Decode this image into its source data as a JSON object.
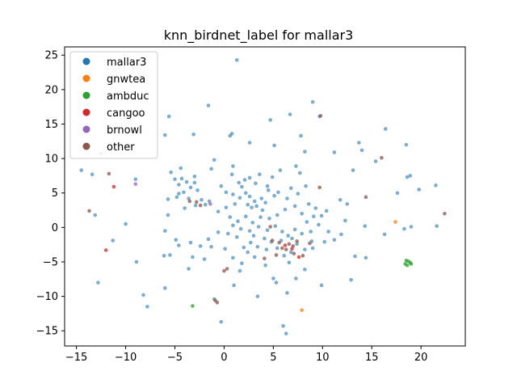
{
  "chart_data": {
    "type": "scatter",
    "title": "knn_birdnet_label for mallar3",
    "xlabel": "",
    "ylabel": "",
    "xlim": [
      -16.2,
      24.5
    ],
    "ylim": [
      -17.2,
      26.2
    ],
    "xticks": [
      -15,
      -10,
      -5,
      0,
      5,
      10,
      15,
      20
    ],
    "yticks": [
      -15,
      -10,
      -5,
      0,
      5,
      10,
      15,
      20,
      25
    ],
    "grid": false,
    "legend_position": "top-left",
    "series": [
      {
        "name": "mallar3",
        "color": "#1f77b4",
        "points": [
          [
            1.3,
            24.3
          ],
          [
            -1.6,
            17.7
          ],
          [
            4.7,
            15.6
          ],
          [
            6.7,
            16.4
          ],
          [
            9.0,
            18.2
          ],
          [
            9.7,
            16.1
          ],
          [
            -5.6,
            16.1
          ],
          [
            -6.0,
            13.4
          ],
          [
            -3.1,
            13.5
          ],
          [
            0.6,
            13.3
          ],
          [
            0.8,
            13.6
          ],
          [
            2.6,
            12.3
          ],
          [
            5.1,
            11.9
          ],
          [
            7.8,
            13.3
          ],
          [
            11.2,
            10.9
          ],
          [
            13.7,
            12.3
          ],
          [
            16.4,
            14.3
          ],
          [
            8.2,
            11.0
          ],
          [
            -12.5,
            10.7
          ],
          [
            -14.5,
            8.3
          ],
          [
            -13.4,
            7.7
          ],
          [
            -9.0,
            7.0
          ],
          [
            -5.0,
            7.0
          ],
          [
            -4.3,
            7.1
          ],
          [
            -3.8,
            6.6
          ],
          [
            -4.6,
            6.2
          ],
          [
            -3.4,
            5.8
          ],
          [
            -3.0,
            6.5
          ],
          [
            -2.7,
            5.4
          ],
          [
            -4.1,
            5.1
          ],
          [
            -4.8,
            4.4
          ],
          [
            -3.6,
            4.2
          ],
          [
            -2.3,
            4.0
          ],
          [
            -1.5,
            3.8
          ],
          [
            -1.9,
            3.3
          ],
          [
            -2.9,
            3.2
          ],
          [
            -1.0,
            9.8
          ],
          [
            -1.3,
            8.5
          ],
          [
            0.8,
            7.7
          ],
          [
            0.9,
            8.9
          ],
          [
            -0.3,
            6.0
          ],
          [
            1.5,
            6.5
          ],
          [
            1.8,
            5.9
          ],
          [
            0.2,
            5.1
          ],
          [
            0.9,
            4.8
          ],
          [
            1.6,
            4.3
          ],
          [
            2.2,
            5.0
          ],
          [
            2.6,
            4.5
          ],
          [
            3.1,
            3.8
          ],
          [
            2.4,
            3.3
          ],
          [
            2.8,
            2.9
          ],
          [
            3.3,
            3.1
          ],
          [
            3.8,
            4.2
          ],
          [
            4.2,
            3.6
          ],
          [
            2.1,
            6.9
          ],
          [
            2.6,
            7.2
          ],
          [
            3.2,
            6.4
          ],
          [
            3.6,
            7.7
          ],
          [
            4.4,
            6.0
          ],
          [
            4.9,
            7.3
          ],
          [
            5.7,
            8.3
          ],
          [
            7.3,
            8.9
          ],
          [
            7.7,
            7.9
          ],
          [
            8.3,
            6.0
          ],
          [
            5.5,
            5.1
          ],
          [
            6.4,
            4.2
          ],
          [
            7.2,
            3.1
          ],
          [
            6.2,
            2.6
          ],
          [
            5.4,
            1.8
          ],
          [
            4.6,
            1.3
          ],
          [
            3.7,
            1.5
          ],
          [
            2.9,
            0.7
          ],
          [
            2.2,
            1.6
          ],
          [
            1.4,
            0.9
          ],
          [
            0.6,
            1.5
          ],
          [
            0.9,
            0.3
          ],
          [
            1.7,
            -0.2
          ],
          [
            2.6,
            -0.5
          ],
          [
            3.5,
            0.1
          ],
          [
            4.4,
            -0.4
          ],
          [
            5.2,
            0.2
          ],
          [
            5.9,
            -0.6
          ],
          [
            6.5,
            -1.2
          ],
          [
            7.2,
            -0.3
          ],
          [
            7.9,
            -0.9
          ],
          [
            8.4,
            0.8
          ],
          [
            9.1,
            1.6
          ],
          [
            9.6,
            0.4
          ],
          [
            9.9,
            1.7
          ],
          [
            10.6,
            -0.6
          ],
          [
            11.2,
            -1.8
          ],
          [
            8.9,
            -2.0
          ],
          [
            8.2,
            -3.2
          ],
          [
            7.4,
            -2.4
          ],
          [
            6.8,
            -3.6
          ],
          [
            6.1,
            -4.1
          ],
          [
            5.4,
            -3.0
          ],
          [
            4.8,
            -2.1
          ],
          [
            4.1,
            -1.6
          ],
          [
            3.4,
            -2.8
          ],
          [
            2.7,
            -2.2
          ],
          [
            2.0,
            -2.9
          ],
          [
            1.3,
            -1.4
          ],
          [
            0.4,
            -0.9
          ],
          [
            -0.6,
            -0.7
          ],
          [
            -1.6,
            -1.7
          ],
          [
            -2.4,
            -2.7
          ],
          [
            -3.4,
            -2.2
          ],
          [
            -4.6,
            -2.6
          ],
          [
            -5.5,
            -4.0
          ],
          [
            -6.1,
            -4.1
          ],
          [
            -6.0,
            -8.8
          ],
          [
            -7.8,
            -11.5
          ],
          [
            -8.2,
            -9.8
          ],
          [
            -12.8,
            -8.0
          ],
          [
            -11.3,
            -1.9
          ],
          [
            -10.0,
            0.5
          ],
          [
            -13.1,
            1.8
          ],
          [
            -8.9,
            -5.0
          ],
          [
            -6.0,
            -0.5
          ],
          [
            -5.7,
            1.8
          ],
          [
            -4.9,
            -1.8
          ],
          [
            -3.6,
            -6.0
          ],
          [
            -1.0,
            -10.4
          ],
          [
            -0.3,
            -13.7
          ],
          [
            1.0,
            -8.4
          ],
          [
            3.4,
            -10.0
          ],
          [
            5.0,
            -7.4
          ],
          [
            5.3,
            -8.0
          ],
          [
            6.4,
            -9.5
          ],
          [
            6.0,
            -14.3
          ],
          [
            6.3,
            -15.4
          ],
          [
            7.3,
            -7.4
          ],
          [
            8.2,
            -6.1
          ],
          [
            9.9,
            -8.4
          ],
          [
            12.9,
            -7.6
          ],
          [
            13.3,
            -4.2
          ],
          [
            14.4,
            -4.4
          ],
          [
            16.3,
            -1.0
          ],
          [
            18.3,
            -0.2
          ],
          [
            19.0,
            0.1
          ],
          [
            21.6,
            0.2
          ],
          [
            10.4,
            2.4
          ],
          [
            11.8,
            4.0
          ],
          [
            12.5,
            3.4
          ],
          [
            13.1,
            8.3
          ],
          [
            14.0,
            11.2
          ],
          [
            15.4,
            9.6
          ],
          [
            17.6,
            5.0
          ],
          [
            18.6,
            7.3
          ],
          [
            18.9,
            7.5
          ],
          [
            19.8,
            5.5
          ],
          [
            21.5,
            6.1
          ],
          [
            18.5,
            12.0
          ],
          [
            12.3,
            1.0
          ],
          [
            14.3,
            0.2
          ],
          [
            11.9,
            -1.0
          ],
          [
            10.2,
            -2.1
          ],
          [
            9.0,
            -3.0
          ],
          [
            6.6,
            -5.1
          ],
          [
            4.2,
            -5.5
          ],
          [
            3.1,
            -4.3
          ],
          [
            1.8,
            -5.2
          ],
          [
            -1.3,
            -2.8
          ],
          [
            -2.0,
            -4.6
          ],
          [
            -3.2,
            -4.3
          ],
          [
            -4.6,
            4.9
          ],
          [
            -5.7,
            4.1
          ],
          [
            -3.0,
            7.4
          ],
          [
            -4.0,
            2.8
          ],
          [
            -0.6,
            2.3
          ],
          [
            0.2,
            2.9
          ],
          [
            1.1,
            3.4
          ],
          [
            3.9,
            2.5
          ],
          [
            4.5,
            5.4
          ],
          [
            5.1,
            4.6
          ],
          [
            6.8,
            5.7
          ],
          [
            7.5,
            4.9
          ],
          [
            8.6,
            3.4
          ],
          [
            9.3,
            2.8
          ],
          [
            7.9,
            2.0
          ],
          [
            8.8,
            -0.6
          ],
          [
            5.8,
            -1.9
          ],
          [
            6.9,
            -1.6
          ],
          [
            4.3,
            -3.2
          ],
          [
            3.0,
            -1.2
          ],
          [
            2.4,
            -3.6
          ],
          [
            0.9,
            -4.4
          ],
          [
            0.1,
            -3.1
          ],
          [
            1.6,
            -6.3
          ],
          [
            -5.4,
            8.0
          ],
          [
            -4.4,
            8.6
          ]
        ]
      },
      {
        "name": "gnwtea",
        "color": "#ff7f0e",
        "points": [
          [
            7.9,
            -12.0
          ],
          [
            17.4,
            0.8
          ]
        ]
      },
      {
        "name": "ambduc",
        "color": "#2ca02c",
        "points": [
          [
            -3.2,
            -11.4
          ],
          [
            18.4,
            -5.3
          ],
          [
            18.7,
            -4.9
          ],
          [
            18.6,
            -5.5
          ],
          [
            18.9,
            -5.1
          ],
          [
            18.5,
            -4.8
          ],
          [
            19.0,
            -5.3
          ]
        ]
      },
      {
        "name": "cangoo",
        "color": "#d62728",
        "points": [
          [
            -12.0,
            -3.3
          ],
          [
            -11.2,
            5.9
          ],
          [
            6.2,
            -2.6
          ],
          [
            6.9,
            -3.1
          ],
          [
            7.6,
            -4.3
          ]
        ]
      },
      {
        "name": "brnowl",
        "color": "#9467bd",
        "points": [
          [
            -9.0,
            6.3
          ],
          [
            -1.4,
            3.4
          ]
        ]
      },
      {
        "name": "other",
        "color": "#8c564b",
        "points": [
          [
            -13.7,
            2.4
          ],
          [
            -11.7,
            7.8
          ],
          [
            -3.5,
            3.8
          ],
          [
            -2.8,
            3.7
          ],
          [
            -2.4,
            3.2
          ],
          [
            -0.9,
            -10.6
          ],
          [
            -0.7,
            -10.9
          ],
          [
            0.0,
            -6.3
          ],
          [
            0.3,
            -6.0
          ],
          [
            4.1,
            -4.5
          ],
          [
            5.3,
            -4.0
          ],
          [
            5.9,
            -3.0
          ],
          [
            6.3,
            -3.2
          ],
          [
            6.6,
            -2.4
          ],
          [
            7.0,
            -2.7
          ],
          [
            7.4,
            -2.0
          ],
          [
            7.1,
            -3.8
          ],
          [
            8.0,
            -4.1
          ],
          [
            8.7,
            -2.3
          ],
          [
            9.8,
            16.2
          ],
          [
            14.4,
            4.4
          ],
          [
            16.0,
            10.1
          ],
          [
            22.4,
            2.0
          ],
          [
            9.7,
            5.8
          ],
          [
            4.7,
            0.1
          ],
          [
            4.9,
            -1.9
          ],
          [
            5.6,
            -2.2
          ]
        ]
      }
    ]
  }
}
